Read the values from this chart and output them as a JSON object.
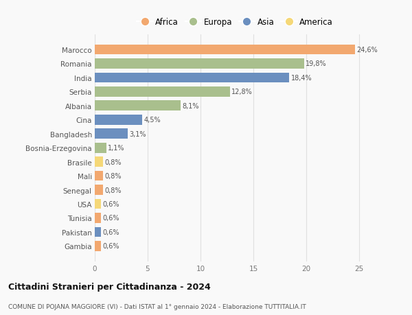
{
  "categories": [
    "Marocco",
    "Romania",
    "India",
    "Serbia",
    "Albania",
    "Cina",
    "Bangladesh",
    "Bosnia-Erzegovina",
    "Brasile",
    "Mali",
    "Senegal",
    "USA",
    "Tunisia",
    "Pakistan",
    "Gambia"
  ],
  "values": [
    24.6,
    19.8,
    18.4,
    12.8,
    8.1,
    4.5,
    3.1,
    1.1,
    0.8,
    0.8,
    0.8,
    0.6,
    0.6,
    0.6,
    0.6
  ],
  "labels": [
    "24,6%",
    "19,8%",
    "18,4%",
    "12,8%",
    "8,1%",
    "4,5%",
    "3,1%",
    "1,1%",
    "0,8%",
    "0,8%",
    "0,8%",
    "0,6%",
    "0,6%",
    "0,6%",
    "0,6%"
  ],
  "continents": [
    "Africa",
    "Europa",
    "Asia",
    "Europa",
    "Europa",
    "Asia",
    "Asia",
    "Europa",
    "America",
    "Africa",
    "Africa",
    "America",
    "Africa",
    "Asia",
    "Africa"
  ],
  "continent_colors": {
    "Africa": "#F2A86F",
    "Europa": "#A9BF8D",
    "Asia": "#6B8FBF",
    "America": "#F5D878"
  },
  "legend_order": [
    "Africa",
    "Europa",
    "Asia",
    "America"
  ],
  "title": "Cittadini Stranieri per Cittadinanza - 2024",
  "subtitle": "COMUNE DI POJANA MAGGIORE (VI) - Dati ISTAT al 1° gennaio 2024 - Elaborazione TUTTITALIA.IT",
  "xlim": [
    0,
    26.5
  ],
  "xticks": [
    0,
    5,
    10,
    15,
    20,
    25
  ],
  "bg_color": "#f9f9f9",
  "grid_color": "#e0e0e0",
  "bar_height": 0.72
}
